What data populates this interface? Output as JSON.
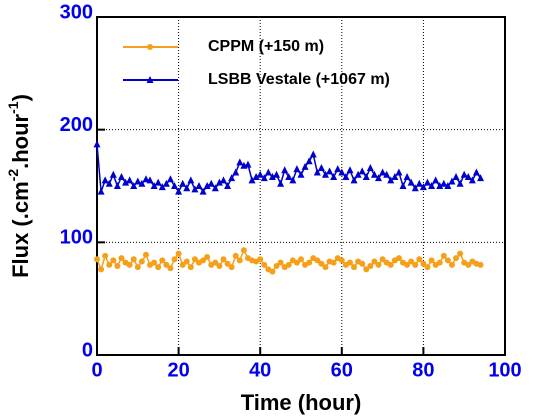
{
  "chart_data": {
    "type": "line",
    "xlabel": "Time (hour)",
    "ylabel": [
      "Flux (.cm",
      "-2",
      ".hour",
      "-1",
      ")"
    ],
    "xlim": [
      0,
      100
    ],
    "xticks": [
      0,
      20,
      40,
      60,
      80,
      100
    ],
    "ylim": [
      0,
      300
    ],
    "yticks": [
      0,
      100,
      200,
      300
    ],
    "grid": true,
    "legend": "upper center",
    "x": [
      0,
      1,
      2,
      3,
      4,
      5,
      6,
      7,
      8,
      9,
      10,
      11,
      12,
      13,
      14,
      15,
      16,
      17,
      18,
      19,
      20,
      21,
      22,
      23,
      24,
      25,
      26,
      27,
      28,
      29,
      30,
      31,
      32,
      33,
      34,
      35,
      36,
      37,
      38,
      39,
      40,
      41,
      42,
      43,
      44,
      45,
      46,
      47,
      48,
      49,
      50,
      51,
      52,
      53,
      54,
      55,
      56,
      57,
      58,
      59,
      60,
      61,
      62,
      63,
      64,
      65,
      66,
      67,
      68,
      69,
      70,
      71,
      72,
      73,
      74,
      75,
      76,
      77,
      78,
      79,
      80,
      81,
      82,
      83,
      84,
      85,
      86,
      87,
      88,
      89,
      90,
      91,
      92,
      93,
      94
    ],
    "series": [
      {
        "name": "CPPM (+150 m)",
        "color": "#f5a01a",
        "marker": "circle",
        "values": [
          85,
          76,
          88,
          80,
          84,
          79,
          86,
          82,
          80,
          85,
          78,
          83,
          89,
          80,
          82,
          78,
          84,
          80,
          77,
          85,
          90,
          80,
          83,
          78,
          85,
          82,
          84,
          87,
          80,
          82,
          79,
          85,
          81,
          78,
          88,
          84,
          93,
          86,
          84,
          83,
          85,
          80,
          76,
          74,
          79,
          82,
          78,
          80,
          84,
          82,
          85,
          80,
          82,
          86,
          84,
          81,
          78,
          83,
          82,
          86,
          84,
          80,
          82,
          78,
          83,
          81,
          76,
          79,
          83,
          80,
          85,
          82,
          80,
          84,
          86,
          82,
          80,
          83,
          80,
          85,
          81,
          78,
          84,
          80,
          82,
          88,
          84,
          80,
          86,
          90,
          82,
          80,
          83,
          81,
          80
        ]
      },
      {
        "name": "LSBB Vestale (+1067 m)",
        "color": "#0000cc",
        "marker": "triangle",
        "values": [
          187,
          145,
          155,
          152,
          160,
          150,
          158,
          153,
          155,
          150,
          154,
          152,
          156,
          155,
          150,
          153,
          149,
          152,
          156,
          150,
          145,
          152,
          148,
          155,
          147,
          150,
          145,
          150,
          152,
          148,
          153,
          155,
          150,
          157,
          162,
          171,
          168,
          169,
          155,
          158,
          160,
          157,
          162,
          158,
          160,
          152,
          164,
          158,
          155,
          165,
          160,
          167,
          172,
          178,
          162,
          166,
          160,
          163,
          158,
          165,
          162,
          158,
          164,
          155,
          160,
          163,
          158,
          166,
          160,
          157,
          162,
          160,
          155,
          158,
          162,
          150,
          158,
          153,
          148,
          152,
          149,
          153,
          150,
          155,
          150,
          152,
          150,
          154,
          158,
          152,
          160,
          158,
          155,
          162,
          157
        ]
      }
    ]
  }
}
